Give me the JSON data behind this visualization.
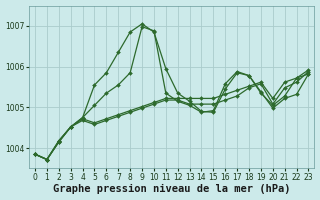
{
  "xlabel": "Graphe pression niveau de la mer (hPa)",
  "bg_color": "#cceaea",
  "grid_color": "#aacccc",
  "line_color": "#2d6a2d",
  "marker_size": 2.0,
  "line_width": 0.9,
  "xlim": [
    -0.5,
    23.5
  ],
  "ylim": [
    1003.5,
    1007.5
  ],
  "yticks": [
    1004,
    1005,
    1006,
    1007
  ],
  "xticks": [
    0,
    1,
    2,
    3,
    4,
    5,
    6,
    7,
    8,
    9,
    10,
    11,
    12,
    13,
    14,
    15,
    16,
    17,
    18,
    19,
    20,
    21,
    22,
    23
  ],
  "series": [
    [
      1003.85,
      1003.72,
      1004.15,
      1004.52,
      1004.75,
      1005.55,
      1005.85,
      1006.35,
      1006.85,
      1007.05,
      1006.85,
      1005.95,
      1005.35,
      1005.15,
      1004.9,
      1004.88,
      1005.45,
      1005.85,
      1005.78,
      1005.35,
      1005.05,
      1005.28,
      1005.72,
      1005.82
    ],
    [
      1003.85,
      1003.72,
      1004.15,
      1004.52,
      1004.75,
      1005.05,
      1005.35,
      1005.55,
      1005.85,
      1006.98,
      1006.88,
      1005.35,
      1005.15,
      1005.05,
      1004.88,
      1004.92,
      1005.58,
      1005.88,
      1005.78,
      1005.38,
      1004.98,
      1005.22,
      1005.32,
      1005.82
    ],
    [
      1003.85,
      1003.72,
      1004.18,
      1004.52,
      1004.72,
      1004.62,
      1004.72,
      1004.82,
      1004.92,
      1005.02,
      1005.12,
      1005.22,
      1005.22,
      1005.22,
      1005.22,
      1005.22,
      1005.32,
      1005.42,
      1005.52,
      1005.62,
      1005.22,
      1005.62,
      1005.72,
      1005.92
    ],
    [
      1003.85,
      1003.72,
      1004.18,
      1004.52,
      1004.68,
      1004.58,
      1004.68,
      1004.78,
      1004.88,
      1004.98,
      1005.08,
      1005.18,
      1005.18,
      1005.08,
      1005.08,
      1005.08,
      1005.18,
      1005.28,
      1005.48,
      1005.58,
      1005.08,
      1005.48,
      1005.62,
      1005.88
    ]
  ],
  "xlabel_fontsize": 7.5,
  "tick_fontsize": 5.5
}
